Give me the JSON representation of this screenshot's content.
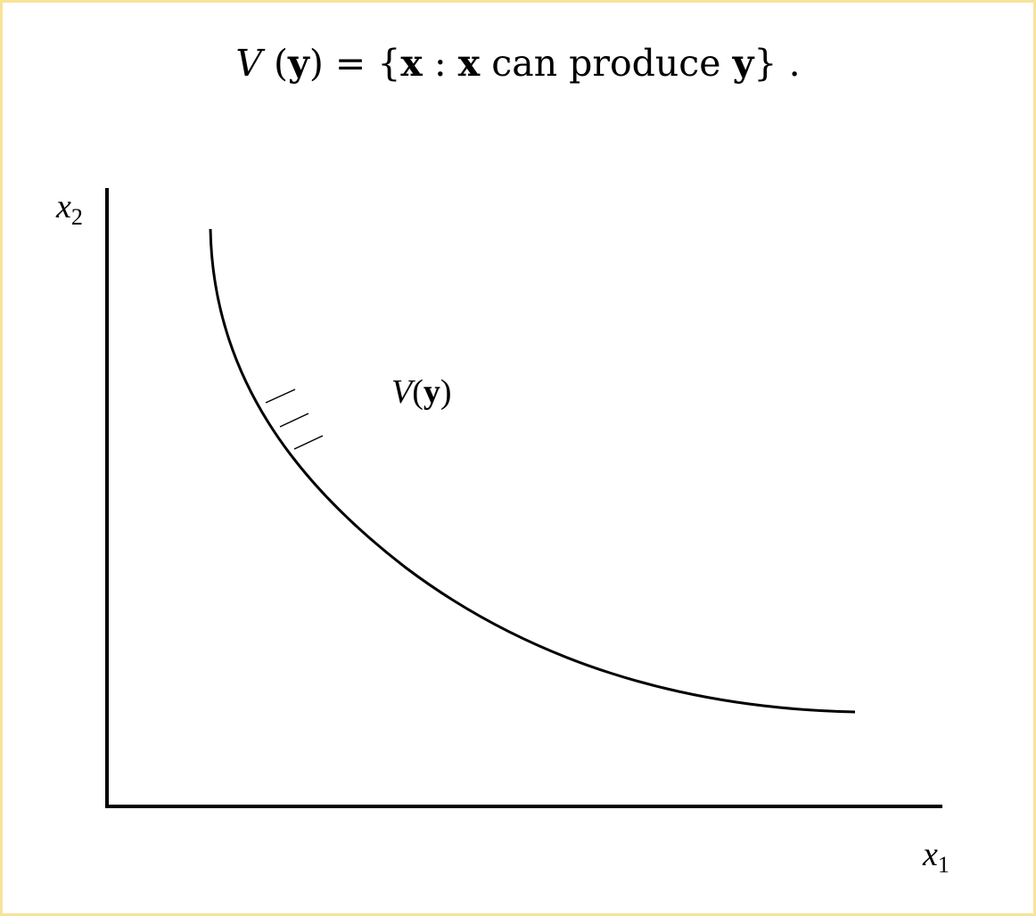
{
  "formula": {
    "set_name": "V",
    "open_paren": "(",
    "arg": "y",
    "close_paren": ")",
    "equals": "=",
    "open_brace": "{",
    "var": "x",
    "colon": ":",
    "var2": "x",
    "phrase": "can produce",
    "target": "y",
    "close_brace": "}",
    "period": "."
  },
  "diagram": {
    "y_axis_label": {
      "base": "x",
      "sub": "2"
    },
    "x_axis_label": {
      "base": "x",
      "sub": "1"
    },
    "region_label": {
      "name": "V",
      "open": "(",
      "arg": "y",
      "close": ")"
    },
    "stroke_color": "#000000",
    "border_color": "#f7e39a"
  }
}
